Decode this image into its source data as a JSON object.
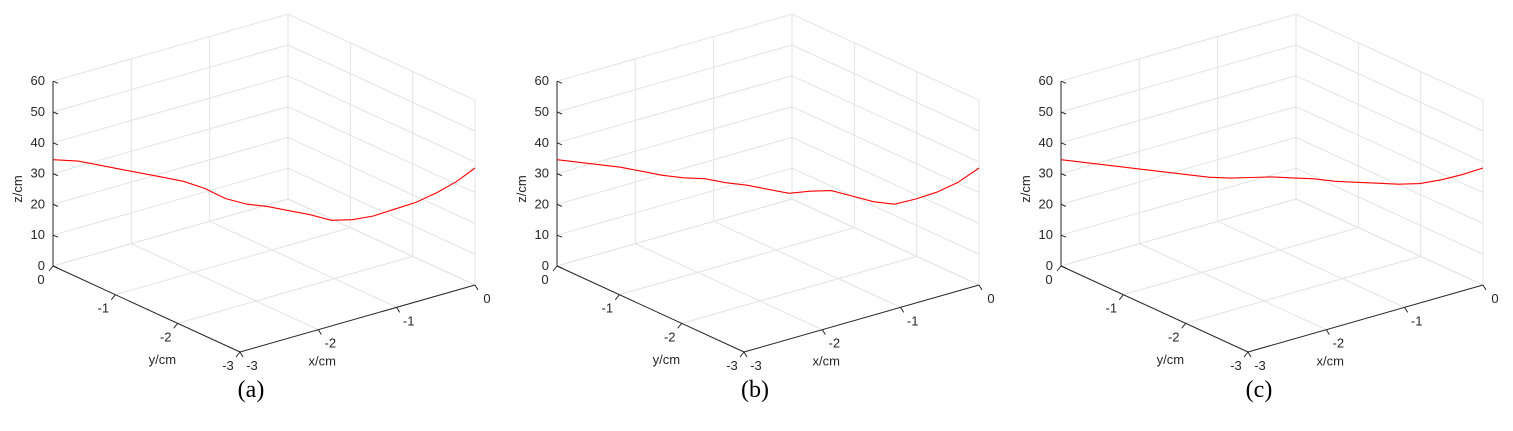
{
  "chart_data": [
    {
      "type": "line3d",
      "caption": "(a)",
      "xlabel": "x/cm",
      "ylabel": "y/cm",
      "zlabel": "z/cm",
      "xlim": [
        -3,
        0
      ],
      "ylim": [
        -3,
        0
      ],
      "zlim": [
        0,
        60
      ],
      "xticks": [
        "-3",
        "-2",
        "-1",
        "0"
      ],
      "yticks": [
        "0",
        "-1",
        "-2",
        "-3"
      ],
      "zticks": [
        "0",
        "10",
        "20",
        "30",
        "40",
        "50",
        "60"
      ],
      "grid": true,
      "series": [
        {
          "color": "#ff0000",
          "x": [
            0,
            -0.12,
            -0.25,
            -0.4,
            -0.55,
            -0.7,
            -0.85,
            -1.0,
            -1.15,
            -1.3,
            -1.45,
            -1.6,
            -1.75,
            -1.9,
            -2.05,
            -2.2,
            -2.35,
            -2.5,
            -2.65,
            -2.8,
            -3.0
          ],
          "y": [
            -3,
            -2.85,
            -2.7,
            -2.55,
            -2.4,
            -2.25,
            -2.1,
            -1.95,
            -1.8,
            -1.65,
            -1.5,
            -1.35,
            -1.2,
            -1.05,
            -0.9,
            -0.75,
            -0.6,
            -0.45,
            -0.3,
            -0.15,
            0
          ],
          "z": [
            38,
            33,
            29,
            25.5,
            23,
            20.5,
            19,
            18.5,
            20,
            21,
            22,
            22.5,
            24,
            27,
            29,
            30,
            31,
            32,
            33,
            34,
            34.5
          ]
        }
      ]
    },
    {
      "type": "line3d",
      "caption": "(b)",
      "xlabel": "x/cm",
      "ylabel": "y/cm",
      "zlabel": "z/cm",
      "xlim": [
        -3,
        0
      ],
      "ylim": [
        -3,
        0
      ],
      "zlim": [
        0,
        60
      ],
      "xticks": [
        "-3",
        "-2",
        "-1",
        "0"
      ],
      "yticks": [
        "0",
        "-1",
        "-2",
        "-3"
      ],
      "zticks": [
        "0",
        "10",
        "20",
        "30",
        "40",
        "50",
        "60"
      ],
      "grid": true,
      "series": [
        {
          "color": "#ff0000",
          "x": [
            0,
            -0.15,
            -0.3,
            -0.45,
            -0.6,
            -0.75,
            -0.9,
            -1.05,
            -1.2,
            -1.35,
            -1.5,
            -1.65,
            -1.8,
            -1.95,
            -2.1,
            -2.25,
            -2.4,
            -2.55,
            -2.7,
            -2.85,
            -3.0
          ],
          "y": [
            -3,
            -2.85,
            -2.7,
            -2.55,
            -2.4,
            -2.25,
            -2.1,
            -1.95,
            -1.8,
            -1.65,
            -1.5,
            -1.35,
            -1.2,
            -1.05,
            -0.9,
            -0.75,
            -0.6,
            -0.45,
            -0.3,
            -0.15,
            0
          ],
          "z": [
            38,
            33,
            29.5,
            27,
            25,
            25.5,
            27,
            28.5,
            28,
            27,
            28,
            29,
            29.5,
            30.5,
            30.5,
            31,
            32,
            33,
            33.5,
            34,
            34.5
          ]
        }
      ]
    },
    {
      "type": "line3d",
      "caption": "(c)",
      "xlabel": "x/cm",
      "ylabel": "y/cm",
      "zlabel": "z/cm",
      "xlim": [
        -3,
        0
      ],
      "ylim": [
        -3,
        0
      ],
      "zlim": [
        0,
        60
      ],
      "xticks": [
        "-3",
        "-2",
        "-1",
        "0"
      ],
      "yticks": [
        "0",
        "-1",
        "-2",
        "-3"
      ],
      "zticks": [
        "0",
        "10",
        "20",
        "30",
        "40",
        "50",
        "60"
      ],
      "grid": true,
      "series": [
        {
          "color": "#ff0000",
          "x": [
            0,
            -0.15,
            -0.3,
            -0.45,
            -0.6,
            -0.75,
            -0.9,
            -1.05,
            -1.2,
            -1.35,
            -1.5,
            -1.65,
            -1.8,
            -1.95,
            -2.1,
            -2.25,
            -2.4,
            -2.55,
            -2.7,
            -2.85,
            -3.0
          ],
          "y": [
            -3,
            -2.85,
            -2.7,
            -2.55,
            -2.4,
            -2.25,
            -2.1,
            -1.95,
            -1.8,
            -1.65,
            -1.5,
            -1.35,
            -1.2,
            -1.05,
            -0.9,
            -0.75,
            -0.6,
            -0.45,
            -0.3,
            -0.15,
            0
          ],
          "z": [
            38,
            35.5,
            33.5,
            32,
            31.5,
            31.5,
            31.5,
            31.5,
            32,
            32,
            32,
            31.5,
            31,
            31,
            31.5,
            32,
            32.5,
            33,
            33.5,
            34,
            34.5
          ]
        }
      ]
    }
  ]
}
